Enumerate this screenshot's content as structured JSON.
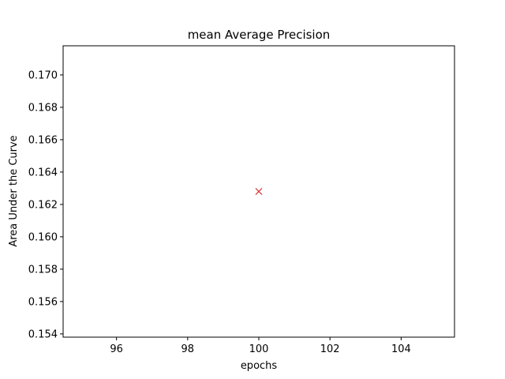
{
  "chart_data": {
    "type": "scatter",
    "title": "mean Average Precision",
    "xlabel": "epochs",
    "ylabel": "Area Under the Curve",
    "xlim": [
      94.5,
      105.5
    ],
    "ylim": [
      0.1538,
      0.1718
    ],
    "xticks": [
      96,
      98,
      100,
      102,
      104
    ],
    "yticks": [
      0.154,
      0.156,
      0.158,
      0.16,
      0.162,
      0.164,
      0.166,
      0.168,
      0.17
    ],
    "xtick_labels": [
      "96",
      "98",
      "100",
      "102",
      "104"
    ],
    "ytick_labels": [
      "0.154",
      "0.156",
      "0.158",
      "0.160",
      "0.162",
      "0.164",
      "0.166",
      "0.168",
      "0.170"
    ],
    "grid": false,
    "series": [
      {
        "marker": "x",
        "color": "#d62728",
        "points": [
          {
            "x": 100,
            "y": 0.1628
          }
        ]
      }
    ]
  }
}
